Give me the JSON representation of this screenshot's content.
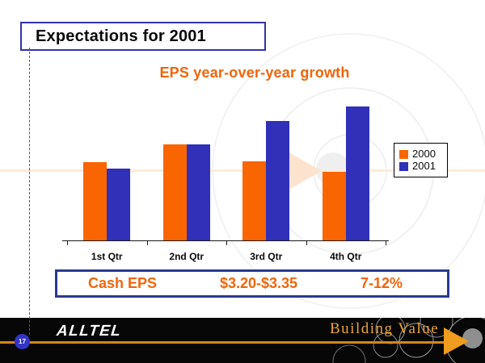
{
  "slide": {
    "title": "Expectations for 2001",
    "page_number": "17"
  },
  "chart_data": {
    "type": "bar",
    "title": "EPS year-over-year growth",
    "categories": [
      "1st Qtr",
      "2nd Qtr",
      "3rd Qtr",
      "4th Qtr"
    ],
    "series": [
      {
        "name": "2000",
        "color": "#F96500",
        "values": [
          97,
          119,
          98,
          85
        ]
      },
      {
        "name": "2001",
        "color": "#3030B8",
        "values": [
          89,
          119,
          148,
          166
        ]
      }
    ],
    "ylim": [
      0,
      175
    ],
    "xlabel": "",
    "ylabel": "",
    "grid": false,
    "value_axis_visible": false,
    "legend_position": "right"
  },
  "summary_bar": {
    "label": "Cash EPS",
    "range": "$3.20-$3.35",
    "growth": "7-12%"
  },
  "footer": {
    "logo_text": "ALLTEL",
    "tagline": "Building Value"
  },
  "colors": {
    "accent_orange": "#F96500",
    "accent_blue": "#3030B8",
    "title_border": "#3333A6",
    "summary_border": "#2B3A8F",
    "footer_bg": "#070707",
    "footer_line": "#D8861C",
    "tagline_gold": "#ECA438"
  }
}
